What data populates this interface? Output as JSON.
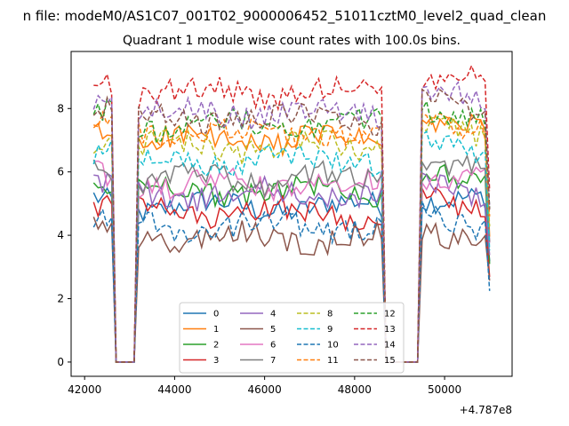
{
  "chart_data": {
    "type": "line",
    "suptitle": "n file: modeM0/AS1C07_001T02_9000006452_51011cztM0_level2_quad_clean",
    "title": "Quadrant 1 module wise count rates with 100.0s bins.",
    "xlabel": "",
    "ylabel": "",
    "x_offset_label": "+4.787e8",
    "xlim": [
      41700,
      51500
    ],
    "ylim": [
      -0.45,
      9.8
    ],
    "xticks": [
      42000,
      44000,
      46000,
      48000,
      50000
    ],
    "yticks": [
      0,
      2,
      4,
      6,
      8
    ],
    "grid": false,
    "legend_placement": "lower-center",
    "legend_columns": 4,
    "x_start": 42200,
    "x_end": 51000,
    "bin_width": 100,
    "gaps": [
      [
        42700,
        43100
      ],
      [
        48700,
        49400
      ]
    ],
    "series": [
      {
        "name": "0",
        "color": "#1f77b4",
        "style": "solid",
        "level": 4.9
      },
      {
        "name": "1",
        "color": "#ff7f0e",
        "style": "solid",
        "level": 7.0
      },
      {
        "name": "2",
        "color": "#2ca02c",
        "style": "solid",
        "level": 5.4
      },
      {
        "name": "3",
        "color": "#d62728",
        "style": "solid",
        "level": 4.7
      },
      {
        "name": "4",
        "color": "#9467bd",
        "style": "solid",
        "level": 5.3
      },
      {
        "name": "5",
        "color": "#8c564b",
        "style": "solid",
        "level": 3.9
      },
      {
        "name": "6",
        "color": "#e377c2",
        "style": "solid",
        "level": 5.6
      },
      {
        "name": "7",
        "color": "#7f7f7f",
        "style": "solid",
        "level": 5.8
      },
      {
        "name": "8",
        "color": "#bcbd22",
        "style": "dashed",
        "level": 6.8
      },
      {
        "name": "9",
        "color": "#17becf",
        "style": "dashed",
        "level": 6.4
      },
      {
        "name": "10",
        "color": "#1f77b4",
        "style": "dashed",
        "level": 4.3
      },
      {
        "name": "11",
        "color": "#ff7f0e",
        "style": "dashed",
        "level": 7.2
      },
      {
        "name": "12",
        "color": "#2ca02c",
        "style": "dashed",
        "level": 7.5
      },
      {
        "name": "13",
        "color": "#d62728",
        "style": "dashed",
        "level": 8.5
      },
      {
        "name": "14",
        "color": "#9467bd",
        "style": "dashed",
        "level": 7.9
      },
      {
        "name": "15",
        "color": "#8c564b",
        "style": "dashed",
        "level": 7.7
      }
    ]
  }
}
